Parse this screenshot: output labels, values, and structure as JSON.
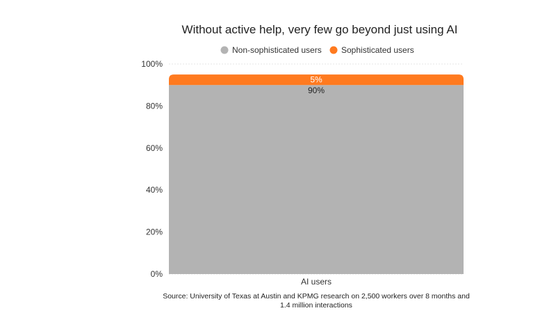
{
  "chart_data": {
    "type": "bar",
    "stacked": true,
    "title": "Without active help, very few go beyond just using AI",
    "categories": [
      "AI users"
    ],
    "series": [
      {
        "name": "Non-sophisticated users",
        "values": [
          90
        ],
        "color": "#b3b3b3",
        "labels": [
          "90%"
        ]
      },
      {
        "name": "Sophisticated users",
        "values": [
          5
        ],
        "color": "#ff7a1f",
        "labels": [
          "5%"
        ]
      }
    ],
    "ylim": [
      0,
      100
    ],
    "yticks": [
      0,
      20,
      40,
      60,
      80,
      100
    ],
    "ytick_labels": [
      "0%",
      "20%",
      "40%",
      "60%",
      "80%",
      "100%"
    ],
    "xlabel": "",
    "ylabel": "",
    "grid": true,
    "legend": "top-center",
    "source_lines": [
      "Source: University of Texas at Austin and KPMG research on 2,500 workers over 8 months and",
      "1.4 million interactions"
    ]
  }
}
